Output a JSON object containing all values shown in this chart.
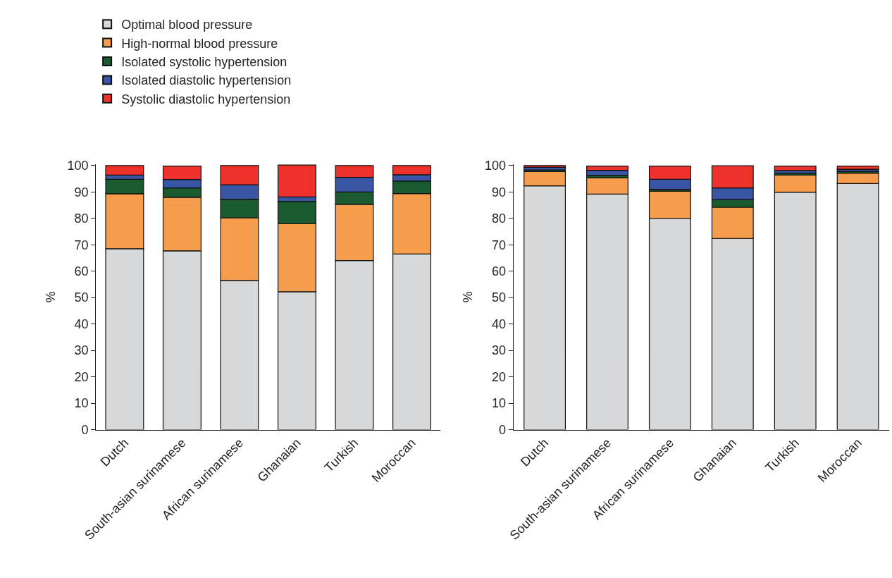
{
  "chart_data": [
    {
      "type": "bar",
      "stacked": true,
      "ylabel": "%",
      "ylim": [
        0,
        100.5
      ],
      "yticks": [
        0,
        10,
        20,
        30,
        40,
        50,
        60,
        70,
        80,
        90,
        100
      ],
      "legend": "top left",
      "categories": [
        "Dutch",
        "South-asian surinamese",
        "African surinamese",
        "Ghanaian",
        "Turkish",
        "Moroccan"
      ],
      "series": [
        {
          "name": "Optimal blood pressure",
          "color": "#d7d8da",
          "values": [
            68.5,
            67.7,
            56.5,
            52.2,
            64.0,
            66.5
          ]
        },
        {
          "name": "High-normal blood pressure",
          "color": "#f59d4c",
          "values": [
            20.8,
            20.3,
            23.7,
            25.8,
            21.3,
            22.9
          ]
        },
        {
          "name": "Isolated systolic hypertension",
          "color": "#1a5c30",
          "values": [
            5.5,
            3.5,
            7.0,
            8.4,
            4.7,
            4.7
          ]
        },
        {
          "name": "Isolated diastolic hypertension",
          "color": "#3a55a4",
          "values": [
            1.6,
            3.2,
            5.5,
            1.7,
            5.5,
            2.4
          ]
        },
        {
          "name": "Systolic diastolic hypertension",
          "color": "#ee322b",
          "values": [
            3.6,
            5.1,
            7.3,
            12.1,
            4.5,
            3.5
          ]
        }
      ]
    },
    {
      "type": "bar",
      "stacked": true,
      "ylabel": "%",
      "ylim": [
        0,
        100.5
      ],
      "yticks": [
        0,
        10,
        20,
        30,
        40,
        50,
        60,
        70,
        80,
        90,
        100
      ],
      "categories": [
        "Dutch",
        "South-asian surinamese",
        "African surinamese",
        "Ghanaian",
        "Turkish",
        "Moroccan"
      ],
      "series": [
        {
          "color": "#d7d8da",
          "values": [
            92.3,
            89.2,
            80.0,
            72.4,
            89.9,
            93.2
          ]
        },
        {
          "color": "#f59d4c",
          "values": [
            5.4,
            6.2,
            10.3,
            11.8,
            6.5,
            3.9
          ]
        },
        {
          "color": "#1a5c30",
          "values": [
            0.6,
            0.9,
            0.7,
            2.9,
            0.7,
            0.7
          ]
        },
        {
          "color": "#3a55a4",
          "values": [
            1.0,
            1.9,
            3.8,
            4.4,
            1.0,
            0.8
          ]
        },
        {
          "color": "#ee322b",
          "values": [
            0.7,
            1.6,
            5.0,
            8.4,
            1.7,
            1.2
          ]
        }
      ]
    }
  ]
}
